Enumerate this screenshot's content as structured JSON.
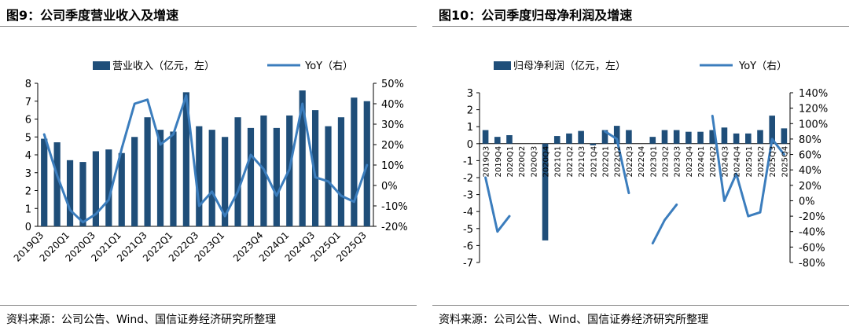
{
  "left": {
    "title": "图9：公司季度营业收入及增速",
    "source": "资料来源：公司公告、Wind、国信证券经济研究所整理"
  },
  "right": {
    "title": "图10：公司季度归母净利润及增速",
    "source": "资料来源：公司公告、Wind、国信证券经济研究所整理"
  },
  "chart_data": [
    {
      "type": "bar",
      "title": "公司季度营业收入及增速",
      "legend": [
        "营业收入（亿元，左）",
        "YoY（右）"
      ],
      "categories": [
        "2019Q3",
        "2019Q4",
        "2020Q1",
        "2020Q2",
        "2020Q3",
        "2020Q4",
        "2021Q1",
        "2021Q2",
        "2021Q3",
        "2021Q4",
        "2022Q1",
        "2022Q2",
        "2022Q3",
        "2022Q4",
        "2023Q1",
        "2023Q2",
        "2023Q3",
        "2023Q4",
        "2024Q1",
        "2024Q2",
        "2024Q3",
        "2024Q4",
        "2025Q1",
        "2025Q2",
        "2025Q3",
        "2025Q4"
      ],
      "x_tick_labels": [
        "2019Q3",
        "2020Q1",
        "2020Q3",
        "2021Q1",
        "2021Q3",
        "2022Q1",
        "2022Q3",
        "2023Q1",
        "2023Q4",
        "2024Q1",
        "2024Q3",
        "2025Q1",
        "2025Q3"
      ],
      "series": [
        {
          "name": "营业收入（亿元，左）",
          "kind": "bar",
          "axis": "left",
          "values": [
            4.9,
            4.7,
            3.7,
            3.6,
            4.2,
            4.3,
            4.1,
            5.0,
            6.1,
            5.4,
            5.3,
            7.5,
            5.6,
            5.4,
            5.0,
            6.1,
            5.5,
            6.2,
            5.5,
            6.2,
            7.6,
            6.5,
            5.6,
            6.1,
            7.2,
            7.0
          ]
        },
        {
          "name": "YoY（右）",
          "kind": "line",
          "axis": "right",
          "values": [
            25,
            5,
            -12,
            -18,
            -14,
            -7,
            18,
            40,
            42,
            20,
            25,
            44,
            -10,
            -3,
            -15,
            -3,
            15,
            8,
            -5,
            8,
            40,
            4,
            2,
            -5,
            -8,
            10
          ]
        }
      ],
      "y_left": {
        "ticks": [
          0,
          1,
          2,
          3,
          4,
          5,
          6,
          7,
          8
        ],
        "ylim": [
          0,
          8
        ]
      },
      "y_right": {
        "ticks": [
          "50%",
          "40%",
          "30%",
          "20%",
          "10%",
          "0%",
          "-10%",
          "-20%"
        ],
        "ylim": [
          -20,
          50
        ]
      }
    },
    {
      "type": "bar",
      "title": "公司季度归母净利润及增速",
      "legend": [
        "归母净利润（亿元，左）",
        "YoY（右）"
      ],
      "categories": [
        "2019Q3",
        "2019Q4",
        "2020Q1",
        "2020Q2",
        "2020Q3",
        "2020Q4",
        "2021Q1",
        "2021Q2",
        "2021Q3",
        "2021Q4",
        "2022Q1",
        "2022Q2",
        "2022Q3",
        "2022Q4",
        "2023Q1",
        "2023Q2",
        "2023Q3",
        "2023Q4",
        "2024Q1",
        "2024Q2",
        "2024Q3",
        "2024Q4",
        "2025Q1",
        "2025Q2",
        "2025Q3",
        "2025Q4"
      ],
      "x_tick_labels": [
        "2019Q3",
        "2019Q4",
        "2020Q1",
        "2020Q2",
        "2020Q3",
        "2020Q4",
        "2021Q1",
        "2021Q2",
        "2021Q3",
        "2021Q4",
        "2022Q1",
        "2022Q2",
        "2022Q3",
        "2022Q4",
        "2023Q1",
        "2023Q2",
        "2023Q3",
        "2023Q4",
        "2024Q1",
        "2024Q2",
        "2024Q3",
        "2024Q4",
        "2025Q1",
        "2025Q2",
        "2025Q3",
        "2025Q4"
      ],
      "series": [
        {
          "name": "归母净利润（亿元，左）",
          "kind": "bar",
          "axis": "left",
          "values": [
            0.8,
            0.4,
            0.5,
            0.0,
            0.0,
            -5.7,
            0.45,
            0.6,
            0.75,
            -0.1,
            0.8,
            1.05,
            0.8,
            0.0,
            0.4,
            0.8,
            0.8,
            0.7,
            0.7,
            0.8,
            0.95,
            0.6,
            0.6,
            0.8,
            1.65,
            0.9
          ]
        },
        {
          "name": "YoY（右）",
          "kind": "line",
          "axis": "right",
          "values": [
            30,
            -40,
            -20,
            null,
            null,
            null,
            null,
            null,
            null,
            null,
            90,
            80,
            10,
            null,
            -55,
            -25,
            -5,
            null,
            null,
            110,
            0,
            35,
            -20,
            -15,
            80,
            60
          ]
        }
      ],
      "y_left": {
        "ticks": [
          3,
          2,
          1,
          0,
          -1,
          -2,
          -3,
          -4,
          -5,
          -6,
          -7
        ],
        "ylim": [
          -7,
          3
        ]
      },
      "y_right": {
        "ticks": [
          "140%",
          "120%",
          "100%",
          "80%",
          "60%",
          "40%",
          "20%",
          "0%",
          "-20%",
          "-40%",
          "-60%",
          "-80%"
        ],
        "ylim": [
          -80,
          140
        ]
      }
    }
  ]
}
